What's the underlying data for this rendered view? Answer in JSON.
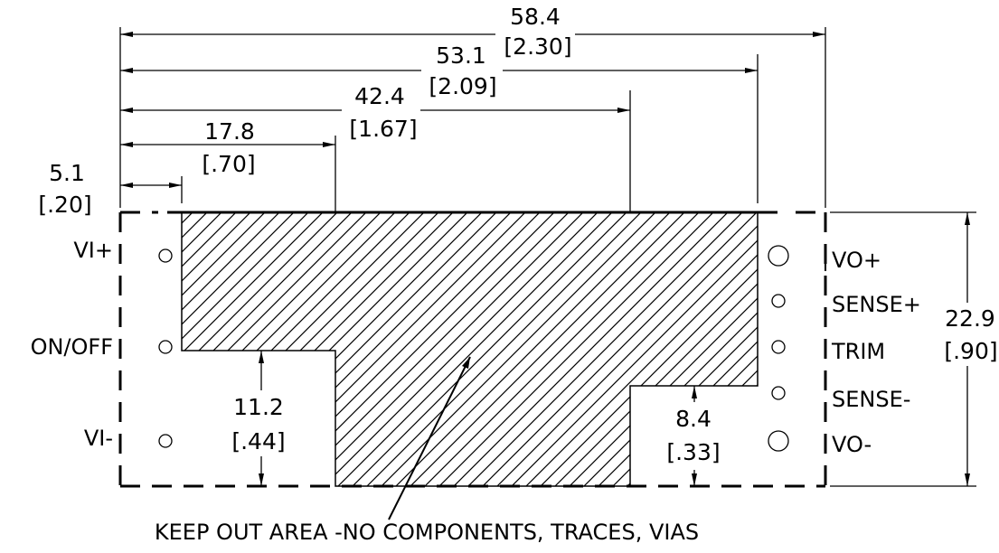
{
  "dimensions": {
    "overall_width": {
      "mm": "58.4",
      "in": "[2.30]"
    },
    "vo_pin_offset": {
      "mm": "53.1",
      "in": "[2.09]"
    },
    "keepout_right_step": {
      "mm": "42.4",
      "in": "[1.67]"
    },
    "keepout_left_step": {
      "mm": "17.8",
      "in": "[.70]"
    },
    "vi_pin_offset": {
      "mm": "5.1",
      "in": "[.20]"
    },
    "height": {
      "mm": "22.9",
      "in": "[.90]"
    },
    "left_step_height": {
      "mm": "11.2",
      "in": "[.44]"
    },
    "right_step_height": {
      "mm": "8.4",
      "in": "[.33]"
    }
  },
  "pins_left": [
    "VI+",
    "ON/OFF",
    "VI-"
  ],
  "pins_right": [
    "VO+",
    "SENSE+",
    "TRIM",
    "SENSE-",
    "VO-"
  ],
  "note": "KEEP OUT AREA -NO COMPONENTS, TRACES, VIAS"
}
